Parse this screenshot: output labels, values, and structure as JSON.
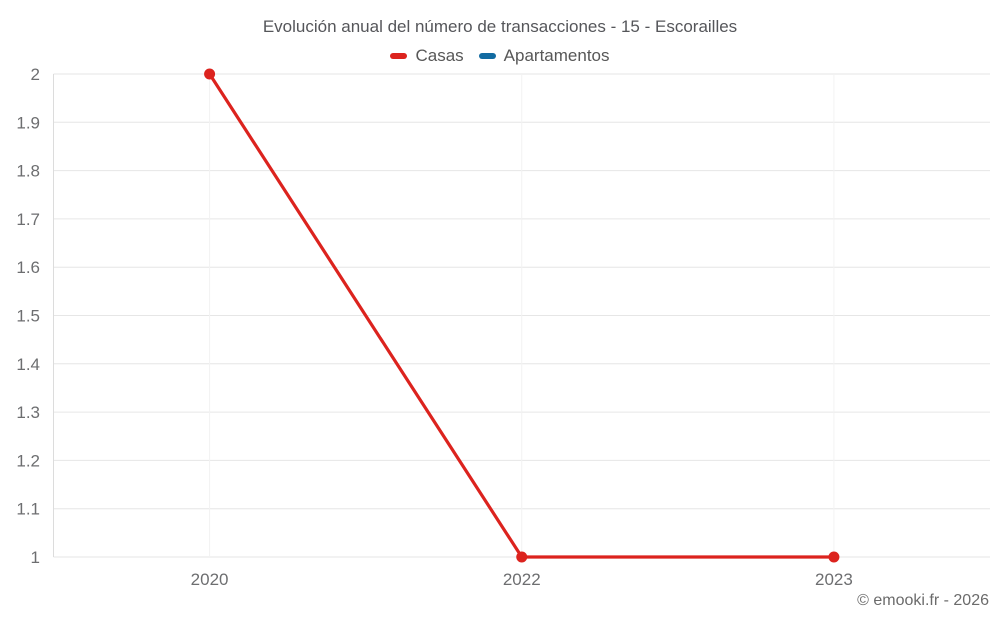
{
  "watermark": "© emooki.fr - 2026",
  "chart_data": {
    "type": "line",
    "title": "Evolución anual del número de transacciones - 15 - Escorailles",
    "categories": [
      "2020",
      "2022",
      "2023"
    ],
    "series": [
      {
        "name": "Casas",
        "color": "#dc231e",
        "values": [
          2,
          1,
          1
        ]
      },
      {
        "name": "Apartamentos",
        "color": "#126ba1",
        "values": []
      }
    ],
    "xlabel": "",
    "ylabel": "",
    "ylim": [
      1,
      2
    ],
    "yticks": [
      1,
      1.1,
      1.2,
      1.3,
      1.4,
      1.5,
      1.6,
      1.7,
      1.8,
      1.9,
      2
    ],
    "grid": true,
    "legend_position": "top",
    "colors": {
      "gridline": "#e6e6e6",
      "category_gridline": "#f2f2f2",
      "axis_line": "#dcdcdc"
    }
  }
}
